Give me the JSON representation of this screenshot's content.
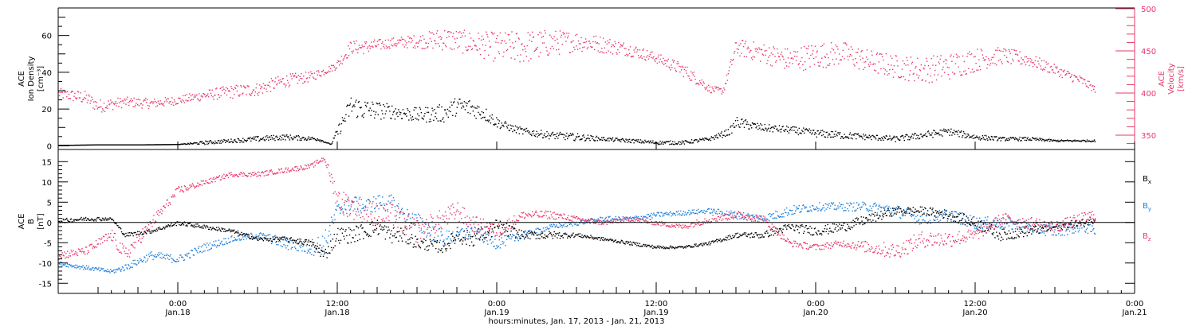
{
  "figure": {
    "xlabel": "hours:minutes, Jan. 17, 2013 - Jan. 21, 2013",
    "x_ticks": [
      {
        "hours": 6,
        "time": "0:00",
        "date": "Jan.18"
      },
      {
        "hours": 18,
        "time": "12:00",
        "date": "Jan.18"
      },
      {
        "hours": 30,
        "time": "0:00",
        "date": "Jan.19"
      },
      {
        "hours": 42,
        "time": "12:00",
        "date": "Jan.19"
      },
      {
        "hours": 54,
        "time": "0:00",
        "date": "Jan.20"
      },
      {
        "hours": 66,
        "time": "12:00",
        "date": "Jan.20"
      },
      {
        "hours": 78,
        "time": "0:00",
        "date": "Jan.21"
      }
    ]
  },
  "chart_data": [
    {
      "type": "scatter",
      "panel": "top",
      "ylabel_left": [
        "ACE",
        "Ion Density",
        "[cm⁻³]"
      ],
      "ylabel_right": [
        "ACE",
        "Velocity",
        "[km/s]"
      ],
      "xlim": [
        -3,
        78
      ],
      "ylim_left": [
        -2,
        75
      ],
      "ylim_right": [
        333,
        501
      ],
      "left_ticks": [
        "0",
        "20",
        "40",
        "60"
      ],
      "right_ticks": [
        "350",
        "400",
        "450",
        "500"
      ],
      "series": [
        {
          "name": "Ion Density",
          "axis": "left",
          "color": "#000000",
          "x": [
            -3,
            0,
            3,
            6,
            8,
            10,
            12,
            14,
            16.5,
            17.5,
            18,
            19,
            20,
            22,
            24,
            26,
            27,
            28,
            29,
            30,
            31,
            32,
            34,
            36,
            38,
            40,
            42,
            44,
            46,
            47.5,
            48,
            50,
            52,
            54,
            56,
            58,
            60,
            62,
            64,
            66,
            68,
            70,
            72,
            74,
            75
          ],
          "y": [
            0.5,
            0.8,
            0.8,
            1,
            2,
            3,
            4,
            5,
            4,
            1,
            8,
            22,
            20,
            19,
            17,
            18,
            22,
            21,
            18,
            13,
            10,
            8,
            6,
            5,
            4,
            3,
            2,
            2,
            4,
            8,
            13,
            10,
            9,
            7,
            6,
            5,
            4,
            6,
            8,
            5,
            4,
            4,
            3,
            3,
            3
          ],
          "noise": [
            0,
            0,
            0,
            0,
            1,
            1,
            1.5,
            1.5,
            1,
            0,
            3,
            6,
            6,
            4,
            4,
            5,
            5,
            5,
            4,
            3,
            2,
            2,
            2,
            2,
            1,
            1,
            1,
            1,
            1,
            2,
            3,
            2,
            2,
            2,
            2,
            1.5,
            1.5,
            2,
            2,
            1.5,
            1,
            1,
            0.5,
            0.5,
            0.5
          ]
        },
        {
          "name": "Velocity",
          "axis": "right",
          "color": "#e8386a",
          "x": [
            -3,
            -1,
            0,
            2,
            4,
            6,
            8,
            10,
            12,
            14,
            16,
            17.5,
            18,
            19,
            20,
            22,
            24,
            26,
            28,
            30,
            32,
            34,
            36,
            38,
            40,
            42,
            44,
            45.5,
            46,
            47,
            48,
            50,
            52,
            54,
            56,
            58,
            60,
            62,
            64,
            66,
            68,
            70,
            72,
            74,
            75
          ],
          "y": [
            400,
            395,
            385,
            390,
            388,
            392,
            398,
            402,
            405,
            415,
            420,
            430,
            435,
            455,
            455,
            460,
            462,
            465,
            460,
            455,
            455,
            460,
            462,
            458,
            452,
            442,
            428,
            412,
            405,
            403,
            455,
            448,
            440,
            445,
            448,
            438,
            432,
            428,
            432,
            440,
            445,
            440,
            428,
            415,
            405
          ],
          "noise": [
            6,
            8,
            8,
            6,
            6,
            5,
            6,
            8,
            8,
            8,
            6,
            4,
            6,
            8,
            8,
            6,
            8,
            14,
            14,
            18,
            20,
            16,
            12,
            10,
            8,
            6,
            8,
            6,
            4,
            4,
            10,
            12,
            14,
            16,
            14,
            14,
            14,
            16,
            16,
            14,
            10,
            8,
            6,
            6,
            4
          ]
        }
      ]
    },
    {
      "type": "scatter",
      "panel": "bottom",
      "ylabel_left": [
        "ACE",
        "B",
        "[nT]"
      ],
      "xlim": [
        -3,
        78
      ],
      "ylim": [
        -17.5,
        18
      ],
      "y_ticks": [
        "-15",
        "-10",
        "-5",
        "0",
        "5",
        "10",
        "15"
      ],
      "zero_line": true,
      "legend_position": "right",
      "series": [
        {
          "name": "Bx",
          "label_base": "B",
          "label_sub": "x",
          "color": "#000000",
          "x": [
            -3,
            -1,
            0,
            1,
            2,
            4,
            6,
            8,
            10,
            12,
            14,
            16,
            17,
            18,
            19,
            20,
            21,
            22,
            23,
            24,
            26,
            27,
            28,
            30,
            32,
            34,
            36,
            38,
            40,
            42,
            44,
            46,
            48,
            50,
            52,
            54,
            56,
            58,
            60,
            62,
            64,
            66,
            68,
            70,
            72,
            74,
            75
          ],
          "y": [
            0.5,
            1,
            1,
            1,
            -3,
            -2,
            0,
            -1,
            -2,
            -4,
            -4,
            -5,
            -8,
            -3,
            -3,
            -2,
            -1,
            -3,
            -3,
            -5,
            -6,
            -3,
            -4,
            -1,
            -3,
            -3,
            -3,
            -4,
            -5,
            -6,
            -6,
            -5,
            -3,
            -3,
            -1,
            -2,
            -1,
            1,
            3,
            3,
            2,
            0,
            -3,
            -2,
            -1,
            0,
            1
          ],
          "noise": [
            0.5,
            0.5,
            0.5,
            0.3,
            0.5,
            0.5,
            0.5,
            0.5,
            0.5,
            0.5,
            0.6,
            0.8,
            1.5,
            2,
            2,
            2,
            2,
            2,
            2,
            1.5,
            1.5,
            2,
            2,
            2,
            1,
            1,
            0.5,
            0.4,
            0.4,
            0.4,
            0.3,
            0.4,
            0.6,
            0.8,
            1,
            1.2,
            1.2,
            1.2,
            1,
            1,
            1.2,
            1.5,
            1.5,
            1.2,
            1,
            1,
            1
          ]
        },
        {
          "name": "By",
          "label_base": "B",
          "label_sub": "y",
          "color": "#1e7fdc",
          "x": [
            -3,
            -1,
            0,
            1,
            2,
            4,
            6,
            8,
            10,
            12,
            14,
            16,
            17,
            18,
            19,
            20,
            21,
            22,
            23,
            24,
            26,
            27,
            28,
            30,
            32,
            34,
            36,
            38,
            40,
            42,
            44,
            46,
            48,
            50,
            52,
            54,
            56,
            58,
            60,
            62,
            64,
            66,
            68,
            70,
            72,
            74,
            75
          ],
          "y": [
            -10,
            -11,
            -11.5,
            -12,
            -11,
            -8,
            -9,
            -6,
            -4,
            -3,
            -5,
            -6,
            -5,
            3,
            5,
            4,
            5,
            5,
            2,
            0,
            -4,
            -3,
            -2,
            -5,
            -3,
            -1,
            0,
            1,
            1,
            2,
            2.5,
            3,
            2,
            1,
            3,
            4,
            4,
            4,
            3,
            1,
            2,
            0,
            0,
            -1,
            -2,
            -1,
            -2
          ],
          "noise": [
            0.5,
            0.5,
            0.5,
            0.5,
            0.8,
            1,
            1,
            1,
            0.8,
            0.8,
            1.5,
            2,
            3,
            2,
            2,
            2,
            2,
            2,
            2,
            2.5,
            2,
            2,
            1.5,
            1.5,
            0.8,
            0.6,
            0.6,
            0.6,
            0.6,
            0.6,
            0.6,
            0.6,
            1,
            1,
            1.2,
            1,
            1,
            1.2,
            1.5,
            1.5,
            1.5,
            1.5,
            1.5,
            1.5,
            1.5,
            1.2,
            1.2
          ]
        },
        {
          "name": "Bz",
          "label_base": "B",
          "label_sub": "z",
          "color": "#e8386a",
          "x": [
            -3,
            -1,
            0,
            1,
            2,
            4,
            6,
            8,
            10,
            12,
            14,
            16,
            17,
            18,
            19,
            20,
            21,
            22,
            23,
            24,
            26,
            27,
            28,
            30,
            32,
            34,
            36,
            38,
            40,
            42,
            44,
            46,
            48,
            50,
            52,
            54,
            56,
            58,
            60,
            62,
            64,
            66,
            68,
            70,
            72,
            74,
            75
          ],
          "y": [
            -8,
            -7,
            -5,
            -3,
            -8,
            0,
            8,
            10,
            12,
            12,
            13,
            14,
            16,
            6,
            4,
            3,
            2,
            2,
            0,
            -2,
            1,
            3,
            0,
            -2,
            2,
            2,
            1,
            0,
            1,
            0,
            -1,
            1,
            2,
            1,
            -5,
            -6,
            -5,
            -6,
            -7,
            -4,
            -4,
            -3,
            1,
            0,
            -1,
            1,
            2
          ],
          "noise": [
            1,
            1,
            1.2,
            1.5,
            2,
            1.5,
            1,
            0.6,
            0.6,
            0.6,
            0.6,
            0.6,
            0.6,
            3,
            3,
            3,
            3,
            3,
            3,
            3,
            2.5,
            2.5,
            2,
            2,
            1,
            1,
            0.6,
            0.6,
            0.6,
            0.6,
            0.6,
            1,
            1,
            1,
            0.8,
            0.8,
            0.8,
            1.5,
            2,
            2,
            2,
            1.5,
            1.5,
            1.5,
            1.5,
            1.5,
            1.5
          ]
        }
      ]
    }
  ]
}
